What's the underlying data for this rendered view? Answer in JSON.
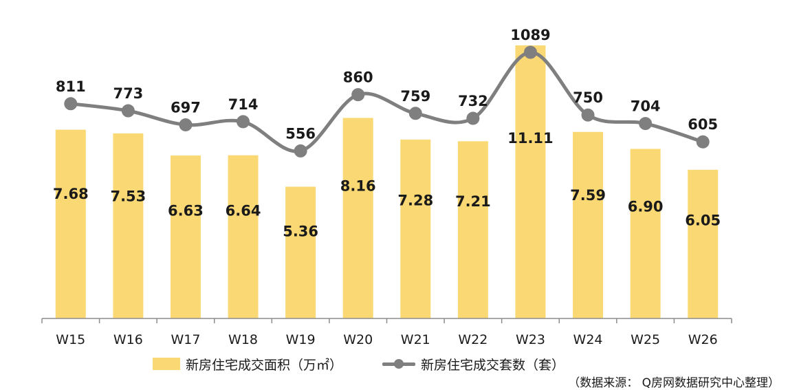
{
  "chart_data": {
    "type": "bar",
    "categories": [
      "W15",
      "W16",
      "W17",
      "W18",
      "W19",
      "W20",
      "W21",
      "W22",
      "W23",
      "W24",
      "W25",
      "W26"
    ],
    "series": [
      {
        "name": "新房住宅成交面积（万㎡）",
        "type": "bar",
        "values": [
          7.68,
          7.53,
          6.63,
          6.64,
          5.36,
          8.16,
          7.28,
          7.21,
          11.11,
          7.59,
          6.9,
          6.05
        ],
        "value_labels": [
          "7.68",
          "7.53",
          "6.63",
          "6.64",
          "5.36",
          "8.16",
          "7.28",
          "7.21",
          "11.11",
          "7.59",
          "6.90",
          "6.05"
        ],
        "axis": "primary"
      },
      {
        "name": "新房住宅成交套数（套）",
        "type": "line",
        "smooth": true,
        "marker": "circle",
        "values": [
          811,
          773,
          697,
          714,
          556,
          860,
          759,
          732,
          1089,
          750,
          704,
          605
        ],
        "value_labels": [
          "811",
          "773",
          "697",
          "714",
          "556",
          "860",
          "759",
          "732",
          "1089",
          "750",
          "704",
          "605"
        ],
        "axis": "secondary"
      }
    ],
    "ylim_primary": [
      0,
      11.11
    ],
    "ylim_secondary": [
      0,
      1089
    ],
    "axes_visible": false,
    "grid": false,
    "legend": "bottom",
    "colors": {
      "bar": "#FAD975",
      "line": "#7F7F7F"
    },
    "source": "（数据来源： Q房网数据研究中心整理）"
  }
}
